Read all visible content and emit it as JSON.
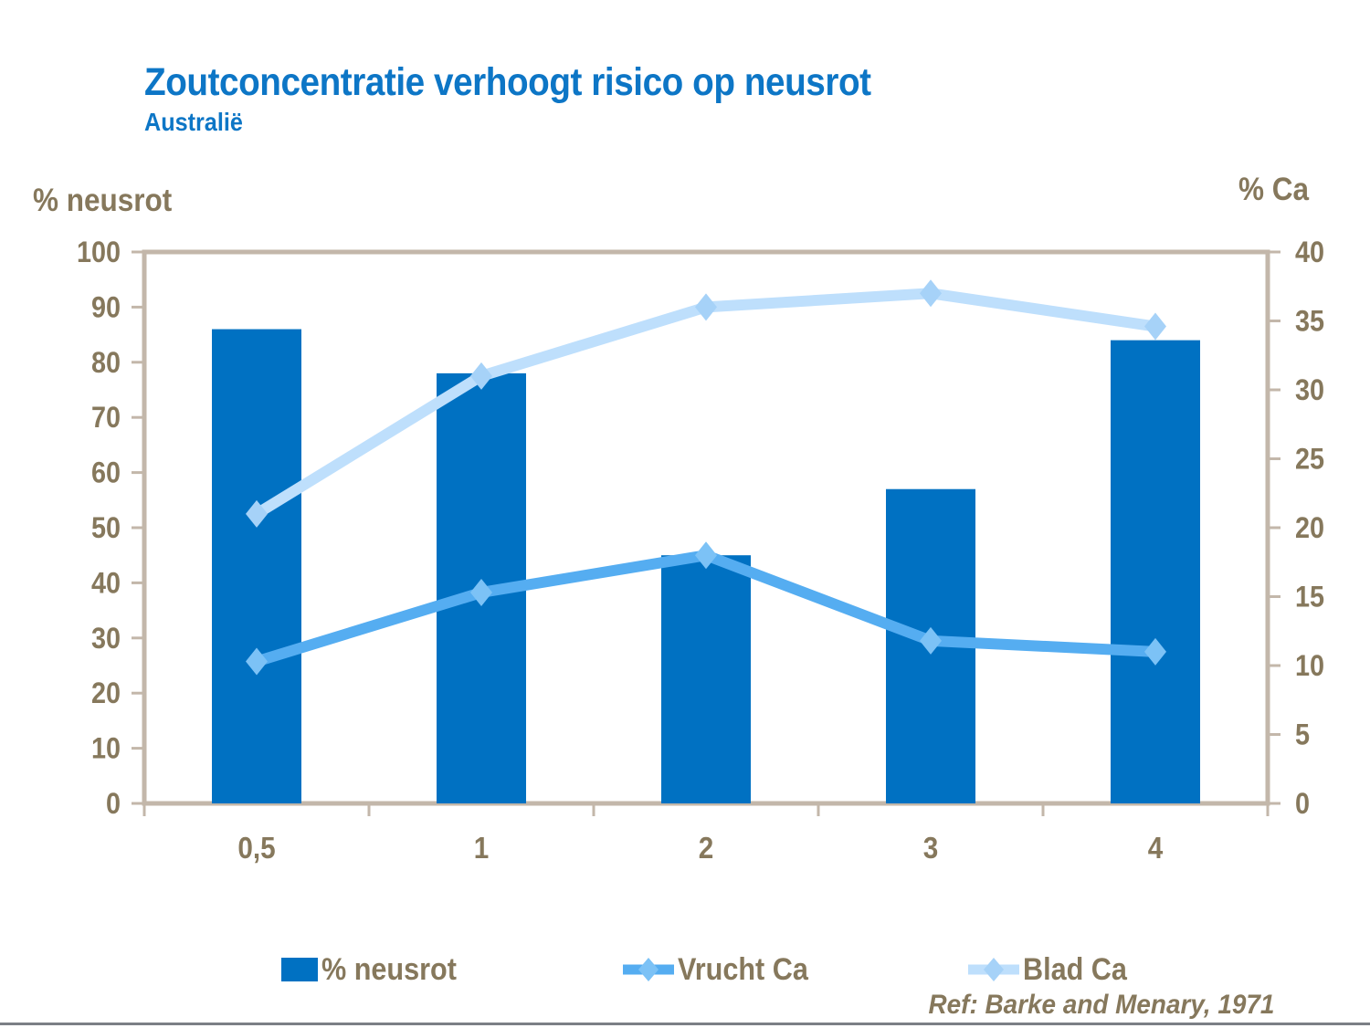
{
  "page": {
    "title": "Zoutconcentratie verhoogt risico op neusrot",
    "subtitle": "Australië",
    "footer_ref": "Ref: Barke and Menary, 1971"
  },
  "colors": {
    "title_blue": "#0d76c6",
    "text_brown": "#86785c",
    "bar_blue": "#0071c2",
    "vrucht_line": "#55adf1",
    "vrucht_marker": "#7cc2f6",
    "blad_line": "#bedffc",
    "blad_marker": "#a6d2f8",
    "frame_tan": "#c3b7aa",
    "bottom_rule_gray": "#7b7f85",
    "background": "#ffffff"
  },
  "chart_data": {
    "type": "bar",
    "subtype": "bar-and-line-combo",
    "categories": [
      "0,5",
      "1",
      "2",
      "3",
      "4"
    ],
    "series": [
      {
        "name": "% neusrot",
        "type": "bar",
        "axis": "left",
        "values": [
          86,
          78,
          45,
          57,
          84
        ]
      },
      {
        "name": "Vrucht Ca",
        "type": "line",
        "axis": "right",
        "values": [
          10.3,
          15.3,
          18,
          11.8,
          11
        ]
      },
      {
        "name": "Blad Ca",
        "type": "line",
        "axis": "right",
        "values": [
          21,
          31,
          36,
          37,
          34.6
        ]
      }
    ],
    "title": "Zoutconcentratie verhoogt risico op neusrot",
    "subtitle": "Australië",
    "xlabel": "",
    "left_axis": {
      "label": "% neusrot",
      "min": 0,
      "max": 100,
      "step": 10
    },
    "right_axis": {
      "label": "% Ca",
      "min": 0,
      "max": 40,
      "step": 5
    },
    "grid": false,
    "legend_position": "bottom",
    "legend": [
      "% neusrot",
      "Vrucht Ca",
      "Blad Ca"
    ]
  }
}
